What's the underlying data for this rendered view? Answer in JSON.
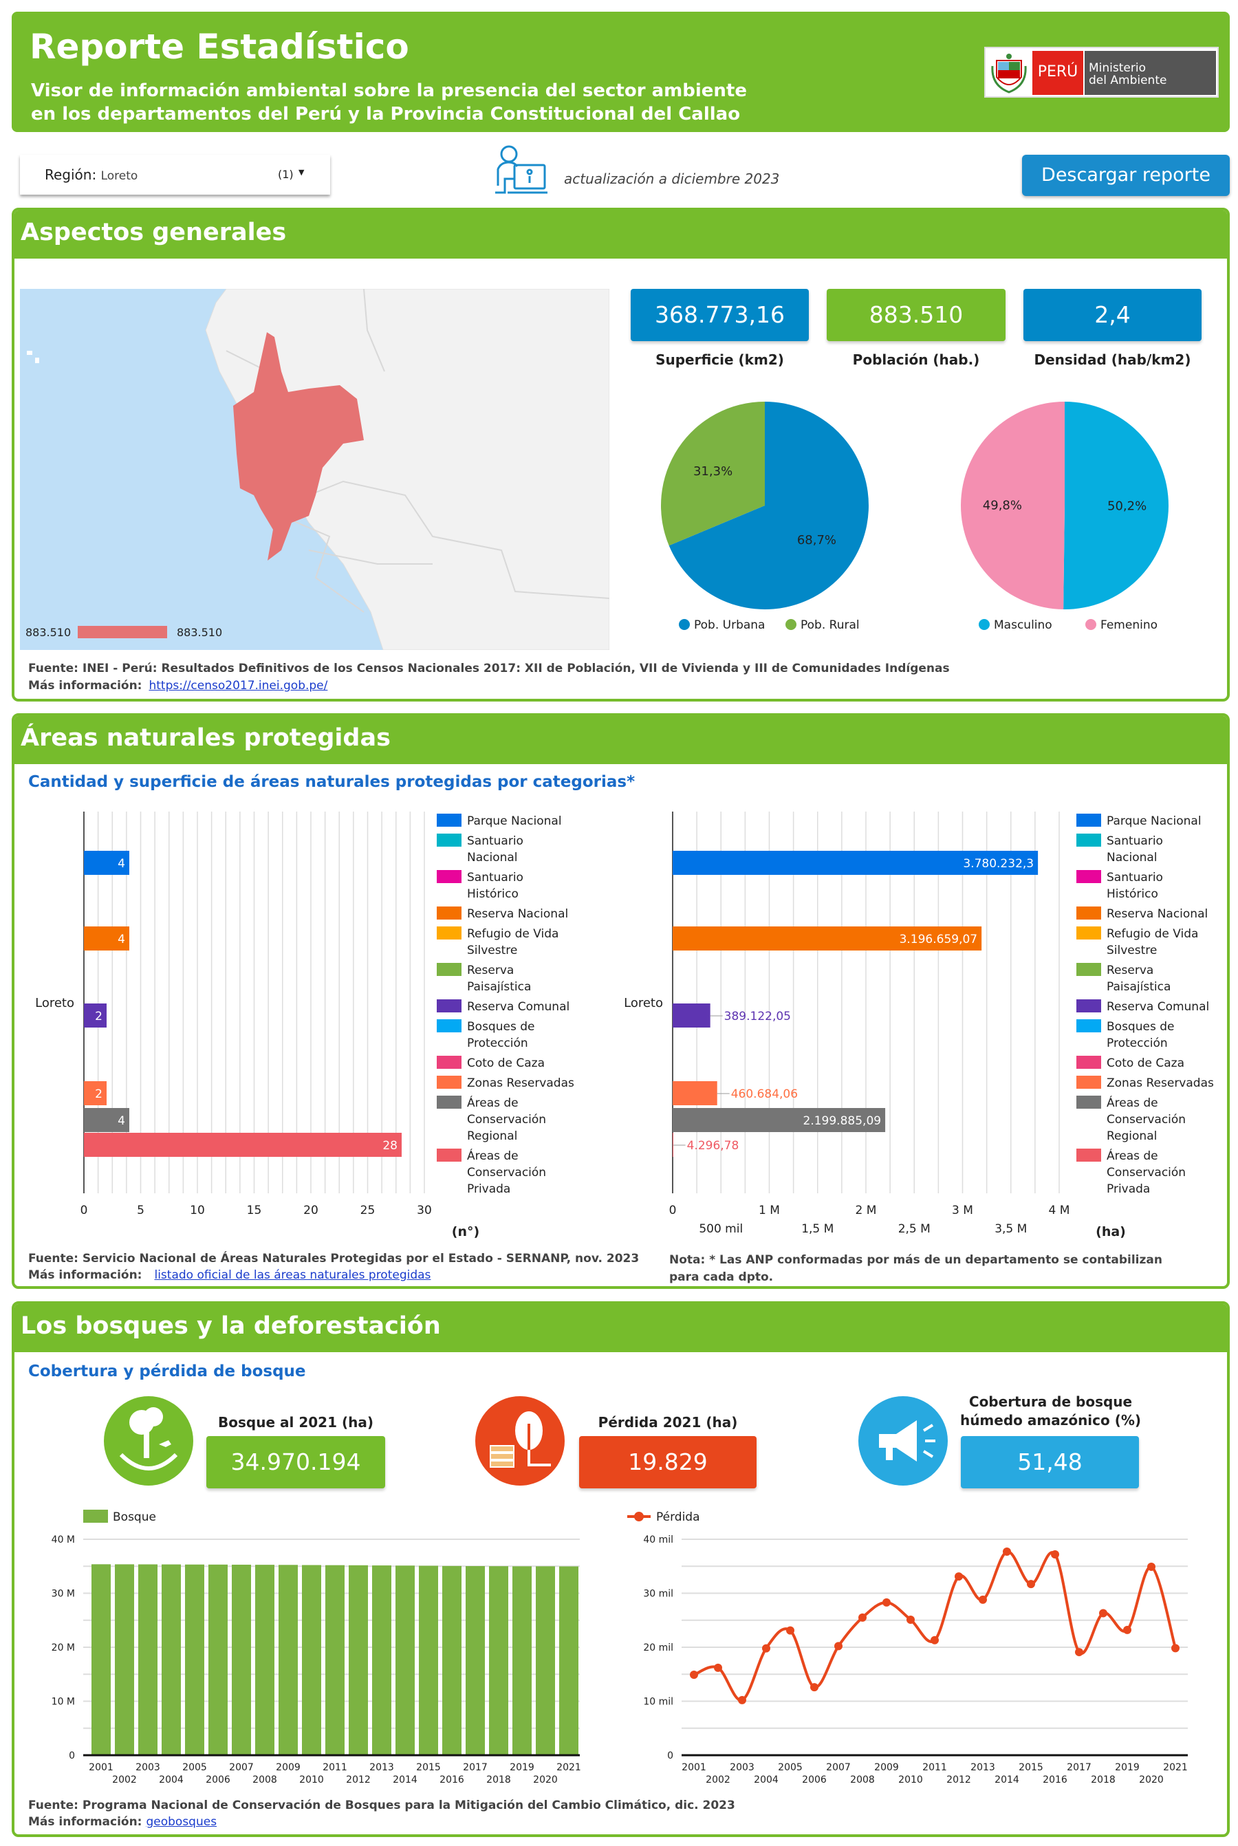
{
  "header": {
    "title": "Reporte Estadístico",
    "subtitle_line1": "Visor de información ambiental sobre la presencia del sector ambiente",
    "subtitle_line2": "en los departamentos del Perú y la Provincia Constitucional del Callao",
    "logo_country": "PERÚ",
    "logo_ministry_1": "Ministerio",
    "logo_ministry_2": "del Ambiente"
  },
  "toolbar": {
    "region_label": "Región:",
    "region_value": "Loreto",
    "region_count": "(1)",
    "update_text": "actualización a diciembre 2023",
    "download_label": "Descargar reporte"
  },
  "general": {
    "title": "Aspectos generales",
    "map_legend_min": "883.510",
    "map_legend_max": "883.510",
    "kpis": [
      {
        "value": "368.773,16",
        "label": "Superficie (km2)",
        "color": "#0288c7"
      },
      {
        "value": "883.510",
        "label": "Población (hab.)",
        "color": "#76bc2c"
      },
      {
        "value": "2,4",
        "label": "Densidad (hab/km2)",
        "color": "#0288c7"
      }
    ],
    "source": "Fuente: INEI - Perú: Resultados Definitivos de los Censos Nacionales 2017: XII de Población, VII de Vivienda y III de Comunidades Indígenas",
    "more_label": "Más información:",
    "more_link": "https://censo2017.inei.gob.pe/"
  },
  "anp": {
    "title": "Áreas naturales protegidas",
    "subtitle": "Cantidad y superficie de áreas naturales protegidas por categorias*",
    "source": "Fuente: Servicio Nacional de Áreas Naturales Protegidas por el Estado - SERNANP, nov. 2023",
    "more_label": "Más información:",
    "more_link": "listado oficial de las áreas naturales protegidas",
    "note": "Nota: * Las ANP conformadas por más de un departamento se contabilizan para cada dpto."
  },
  "bosques": {
    "title": "Los bosques y la deforestación",
    "subtitle": "Cobertura y pérdida de bosque",
    "kpis": [
      {
        "label": "Bosque al 2021 (ha)",
        "value": "34.970.194",
        "color": "#76bc2c",
        "icon": "tree-globe-icon"
      },
      {
        "label": "Pérdida 2021 (ha)",
        "value": "19.829",
        "color": "#e8471c",
        "icon": "tree-logs-icon"
      },
      {
        "label": "Cobertura de bosque húmedo amazónico (%)",
        "value": "51,48",
        "color": "#28a9e0",
        "icon": "megaphone-icon"
      }
    ],
    "source": "Fuente: Programa Nacional de Conservación de Bosques para la Mitigación del Cambio Climático, dic. 2023",
    "more_label": "Más información:",
    "more_link": "geobosques"
  },
  "chart_data": [
    {
      "type": "pie",
      "slices": [
        {
          "name": "Pob. Urbana",
          "value": 68.7,
          "label": "68,7%",
          "color": "#0288c7"
        },
        {
          "name": "Pob. Rural",
          "value": 31.3,
          "label": "31,3%",
          "color": "#7cb342"
        }
      ],
      "legend": "bottom"
    },
    {
      "type": "pie",
      "slices": [
        {
          "name": "Masculino",
          "value": 50.2,
          "label": "50,2%",
          "color": "#06aedf"
        },
        {
          "name": "Femenino",
          "value": 49.8,
          "label": "49,8%",
          "color": "#f48fb1"
        }
      ],
      "legend": "bottom"
    },
    {
      "type": "bar",
      "orientation": "horizontal",
      "categories": [
        "Loreto"
      ],
      "xlabel": "(n°)",
      "xlim": [
        0,
        30
      ],
      "xticks": [
        "0",
        "5",
        "10",
        "15",
        "20",
        "25",
        "30"
      ],
      "grid": true,
      "legend": "right",
      "series": [
        {
          "name": "Parque Nacional",
          "color": "#0073e6",
          "value": 4,
          "label": "4"
        },
        {
          "name": "Santuario Nacional",
          "color": "#00b4c8"
        },
        {
          "name": "Santuario Histórico",
          "color": "#e8059a"
        },
        {
          "name": "Reserva Nacional",
          "color": "#f57000",
          "value": 4,
          "label": "4"
        },
        {
          "name": "Refugio de Vida Silvestre",
          "color": "#ffa800"
        },
        {
          "name": "Reserva Paisajística",
          "color": "#7cb342"
        },
        {
          "name": "Reserva Comunal",
          "color": "#5e35b1",
          "value": 2,
          "label": "2"
        },
        {
          "name": "Bosques de Protección",
          "color": "#03a9f4"
        },
        {
          "name": "Coto de Caza",
          "color": "#ec407a"
        },
        {
          "name": "Zonas Reservadas",
          "color": "#ff7043",
          "value": 2,
          "label": "2"
        },
        {
          "name": "Áreas de Conservación Regional",
          "color": "#757575",
          "value": 4,
          "label": "4"
        },
        {
          "name": "Áreas de Conservación Privada",
          "color": "#ef5a63",
          "value": 28,
          "label": "28"
        }
      ]
    },
    {
      "type": "bar",
      "orientation": "horizontal",
      "categories": [
        "Loreto"
      ],
      "xlabel": "(ha)",
      "xlim": [
        0,
        4000000
      ],
      "xticks_major": [
        "0",
        "1 M",
        "2 M",
        "3 M",
        "4 M"
      ],
      "xticks_minor": [
        "500 mil",
        "1,5 M",
        "2,5 M",
        "3,5 M"
      ],
      "grid": true,
      "legend": "right",
      "series": [
        {
          "name": "Parque Nacional",
          "color": "#0073e6",
          "value": 3780232.3,
          "label": "3.780.232,3"
        },
        {
          "name": "Santuario Nacional",
          "color": "#00b4c8"
        },
        {
          "name": "Santuario Histórico",
          "color": "#e8059a"
        },
        {
          "name": "Reserva Nacional",
          "color": "#f57000",
          "value": 3196659.07,
          "label": "3.196.659,07"
        },
        {
          "name": "Refugio de Vida Silvestre",
          "color": "#ffa800"
        },
        {
          "name": "Reserva Paisajística",
          "color": "#7cb342"
        },
        {
          "name": "Reserva Comunal",
          "color": "#5e35b1",
          "value": 389122.05,
          "label": "389.122,05"
        },
        {
          "name": "Bosques de Protección",
          "color": "#03a9f4"
        },
        {
          "name": "Coto de Caza",
          "color": "#ec407a"
        },
        {
          "name": "Zonas Reservadas",
          "color": "#ff7043",
          "value": 460684.06,
          "label": "460.684,06"
        },
        {
          "name": "Áreas de Conservación Regional",
          "color": "#757575",
          "value": 2199885.09,
          "label": "2.199.885,09"
        },
        {
          "name": "Áreas de Conservación Privada",
          "color": "#ef5a63",
          "value": 4296.78,
          "label": "4.296,78"
        }
      ]
    },
    {
      "type": "bar",
      "x": [
        "2001",
        "2002",
        "2003",
        "2004",
        "2005",
        "2006",
        "2007",
        "2008",
        "2009",
        "2010",
        "2011",
        "2012",
        "2013",
        "2014",
        "2015",
        "2016",
        "2017",
        "2018",
        "2019",
        "2020",
        "2021"
      ],
      "series": [
        {
          "name": "Bosque",
          "color": "#7cb342",
          "values": [
            35370000,
            35360000,
            35350000,
            35340000,
            35320000,
            35310000,
            35290000,
            35270000,
            35250000,
            35220000,
            35200000,
            35180000,
            35150000,
            35120000,
            35090000,
            35050000,
            35030000,
            35010000,
            34990000,
            34990000,
            34970194
          ]
        }
      ],
      "ylim": [
        0,
        40000000
      ],
      "yticks": [
        "0",
        "10 M",
        "20 M",
        "30 M",
        "40 M"
      ],
      "grid": true,
      "legend": "top-left"
    },
    {
      "type": "line",
      "x": [
        "2001",
        "2002",
        "2003",
        "2004",
        "2005",
        "2006",
        "2007",
        "2008",
        "2009",
        "2010",
        "2011",
        "2012",
        "2013",
        "2014",
        "2015",
        "2016",
        "2017",
        "2018",
        "2019",
        "2020",
        "2021"
      ],
      "series": [
        {
          "name": "Pérdida",
          "color": "#e8471c",
          "values": [
            14900,
            16200,
            10200,
            19800,
            23100,
            12600,
            20200,
            25500,
            28300,
            25100,
            21300,
            33100,
            28800,
            37700,
            31700,
            37200,
            19100,
            26300,
            23200,
            34900,
            19829
          ]
        }
      ],
      "ylim": [
        0,
        40000
      ],
      "yticks": [
        "0",
        "10 mil",
        "20 mil",
        "30 mil",
        "40 mil"
      ],
      "grid": true,
      "legend": "top-left"
    }
  ]
}
